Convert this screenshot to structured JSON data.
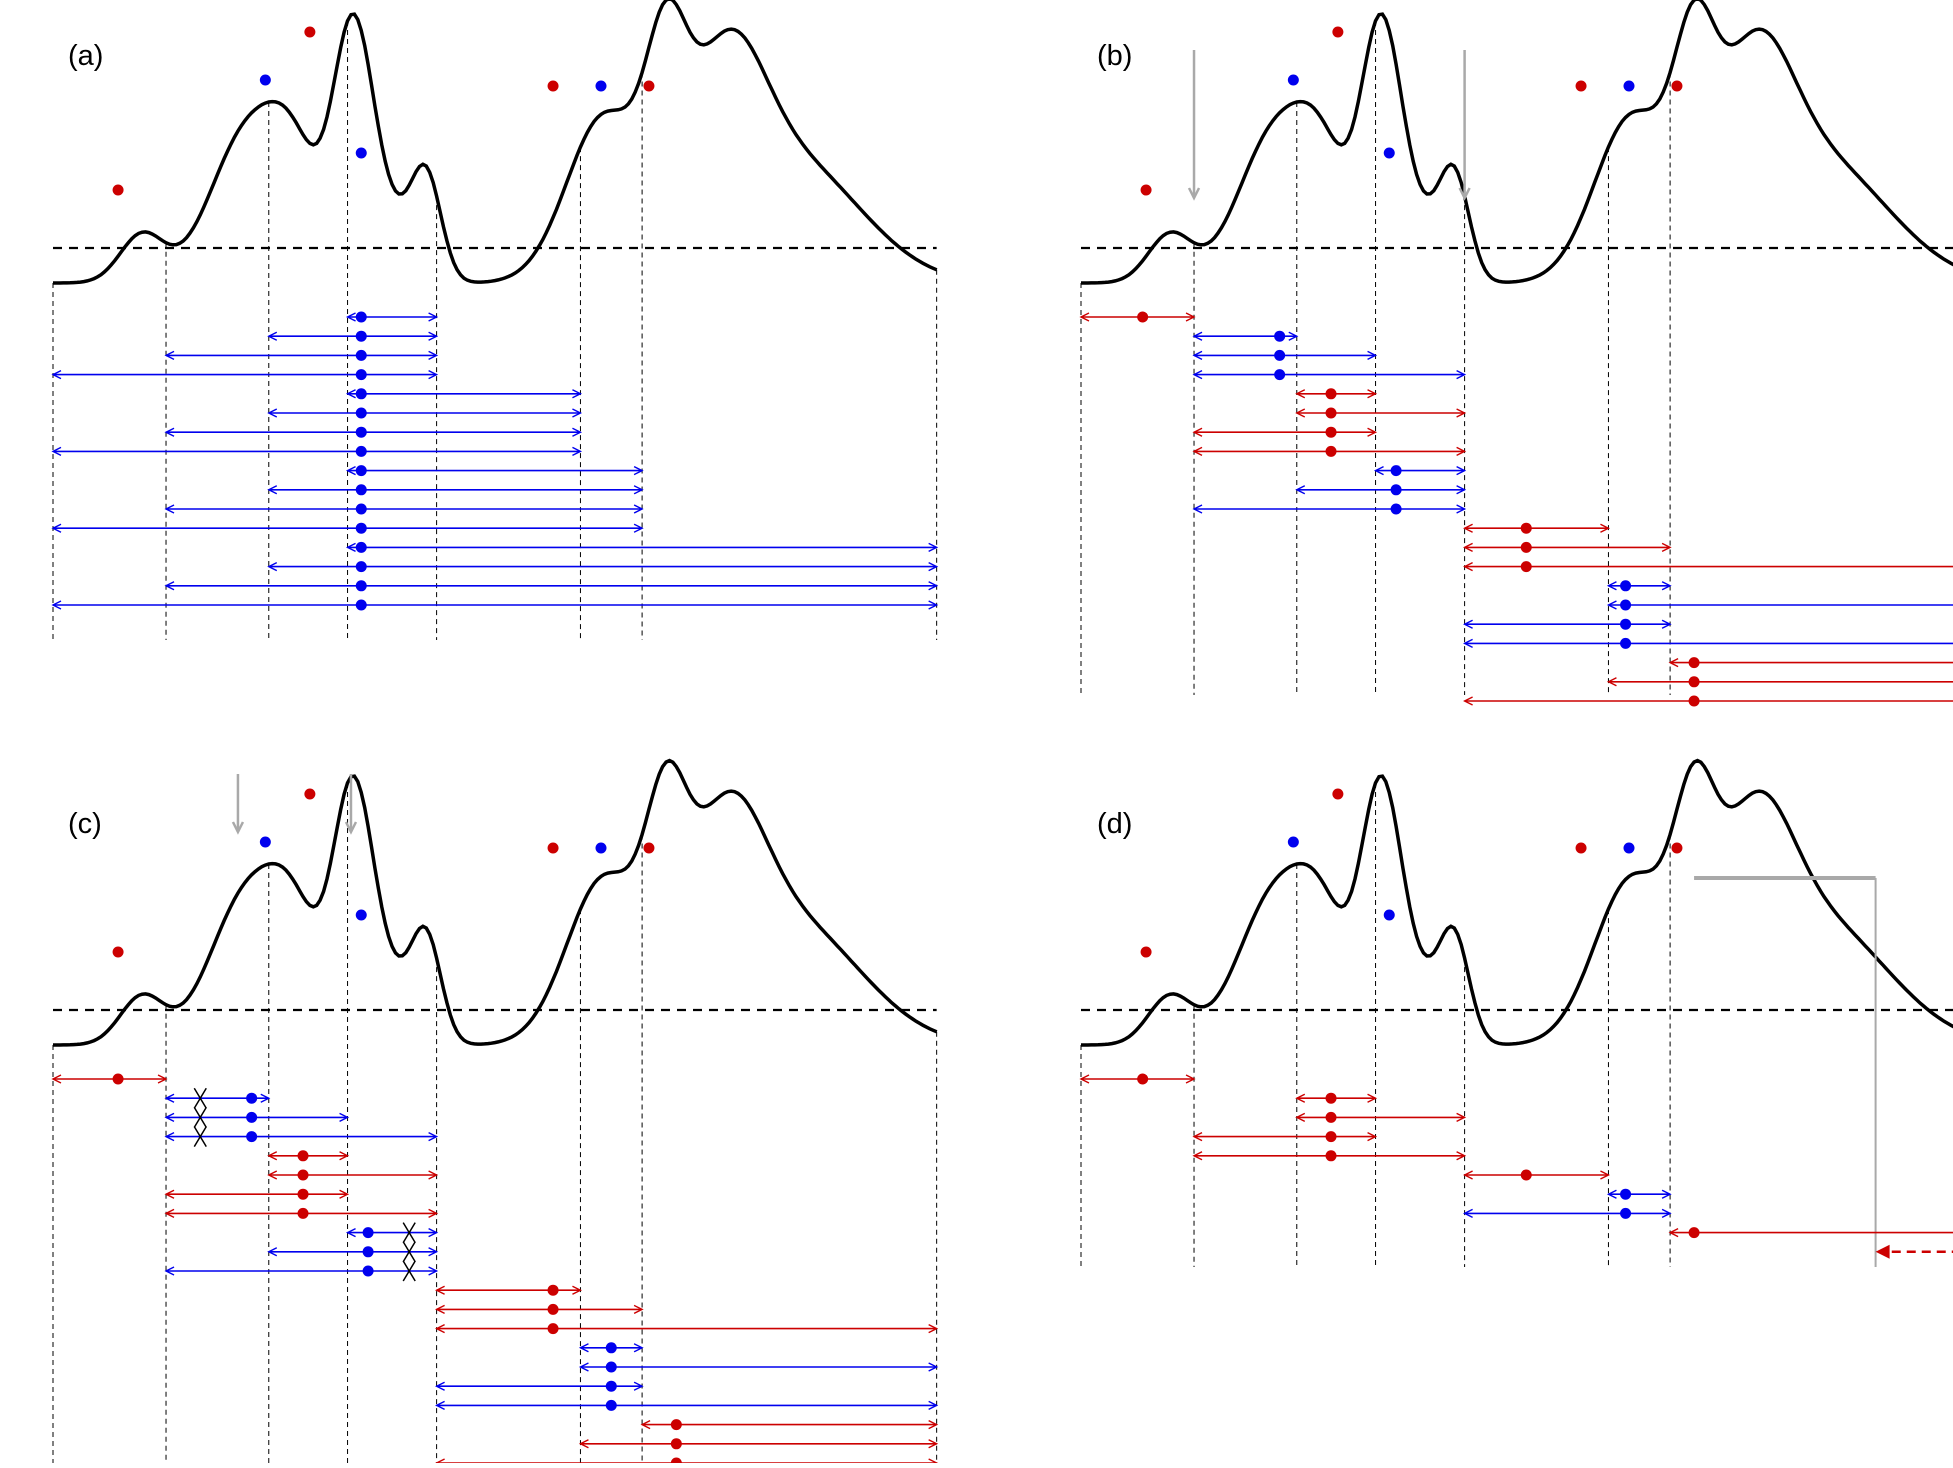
{
  "colors": {
    "red": "#cc0000",
    "blue": "#0000ee",
    "gray": "#a9a9a9",
    "black": "#000000"
  },
  "panels": [
    {
      "id": "a",
      "label": "(a)",
      "peaks": [
        {
          "x": 1.3,
          "color": "red"
        },
        {
          "x": 3.8,
          "color": "blue"
        },
        {
          "x": 4.9,
          "color": "red"
        },
        {
          "x": 5.5,
          "color": "blue"
        },
        {
          "x": 8.7,
          "color": "red"
        },
        {
          "x": 9.6,
          "color": "blue"
        },
        {
          "x": 10.5,
          "color": "red"
        }
      ],
      "separators": [
        0.0,
        1.65,
        3.15,
        4.3,
        5.6,
        7.7,
        8.6,
        12.9
      ],
      "intervals": [
        {
          "from": 4.3,
          "to": 5.6,
          "peak": 4.5,
          "color": "blue"
        },
        {
          "from": 3.15,
          "to": 5.6,
          "peak": 4.5,
          "color": "blue"
        },
        {
          "from": 1.65,
          "to": 5.6,
          "peak": 4.5,
          "color": "blue"
        },
        {
          "from": 0.0,
          "to": 5.6,
          "peak": 4.5,
          "color": "blue"
        },
        {
          "from": 4.3,
          "to": 7.7,
          "peak": 4.5,
          "color": "blue"
        },
        {
          "from": 3.15,
          "to": 7.7,
          "peak": 4.5,
          "color": "blue"
        },
        {
          "from": 1.65,
          "to": 7.7,
          "peak": 4.5,
          "color": "blue"
        },
        {
          "from": 0.0,
          "to": 7.7,
          "peak": 4.5,
          "color": "blue"
        },
        {
          "from": 4.3,
          "to": 8.6,
          "peak": 4.5,
          "color": "blue"
        },
        {
          "from": 3.15,
          "to": 8.6,
          "peak": 4.5,
          "color": "blue"
        },
        {
          "from": 1.65,
          "to": 8.6,
          "peak": 4.5,
          "color": "blue"
        },
        {
          "from": 0.0,
          "to": 8.6,
          "peak": 4.5,
          "color": "blue"
        },
        {
          "from": 4.3,
          "to": 12.9,
          "peak": 4.5,
          "color": "blue"
        },
        {
          "from": 3.15,
          "to": 12.9,
          "peak": 4.5,
          "color": "blue"
        },
        {
          "from": 1.65,
          "to": 12.9,
          "peak": 4.5,
          "color": "blue"
        },
        {
          "from": 0.0,
          "to": 12.9,
          "peak": 4.5,
          "color": "blue"
        }
      ]
    },
    {
      "id": "b",
      "label": "(b)",
      "peaks": [
        {
          "x": 1.3,
          "color": "red"
        },
        {
          "x": 3.8,
          "color": "blue"
        },
        {
          "x": 4.9,
          "color": "red"
        },
        {
          "x": 5.5,
          "color": "blue"
        },
        {
          "x": 8.7,
          "color": "red"
        },
        {
          "x": 9.6,
          "color": "blue"
        },
        {
          "x": 10.5,
          "color": "red"
        }
      ],
      "separators": [
        0.0,
        1.65,
        3.15,
        4.3,
        5.6,
        7.7,
        8.6
      ],
      "gray_arrows": [
        1.65,
        5.6
      ],
      "intervals": [
        {
          "from": 0.0,
          "to": 1.65,
          "peak": 0.9,
          "color": "red"
        },
        {
          "from": 1.65,
          "to": 3.15,
          "peak": 2.9,
          "color": "blue"
        },
        {
          "from": 1.65,
          "to": 4.3,
          "peak": 2.9,
          "color": "blue"
        },
        {
          "from": 1.65,
          "to": 5.6,
          "peak": 2.9,
          "color": "blue"
        },
        {
          "from": 3.15,
          "to": 4.3,
          "peak": 3.65,
          "color": "red"
        },
        {
          "from": 3.15,
          "to": 5.6,
          "peak": 3.65,
          "color": "red"
        },
        {
          "from": 1.65,
          "to": 4.3,
          "peak": 3.65,
          "color": "red"
        },
        {
          "from": 1.65,
          "to": 5.6,
          "peak": 3.65,
          "color": "red"
        },
        {
          "from": 4.3,
          "to": 5.6,
          "peak": 4.6,
          "color": "blue"
        },
        {
          "from": 3.15,
          "to": 5.6,
          "peak": 4.6,
          "color": "blue"
        },
        {
          "from": 1.65,
          "to": 5.6,
          "peak": 4.6,
          "color": "blue"
        },
        {
          "from": 5.6,
          "to": 7.7,
          "peak": 6.5,
          "color": "red"
        },
        {
          "from": 5.6,
          "to": 8.6,
          "peak": 6.5,
          "color": "red"
        },
        {
          "from": 5.6,
          "to": 13.5,
          "peak": 6.5,
          "color": "red"
        },
        {
          "from": 7.7,
          "to": 8.6,
          "peak": 7.95,
          "color": "blue"
        },
        {
          "from": 7.7,
          "to": 13.5,
          "peak": 7.95,
          "color": "blue"
        },
        {
          "from": 5.6,
          "to": 8.6,
          "peak": 7.95,
          "color": "blue"
        },
        {
          "from": 5.6,
          "to": 13.5,
          "peak": 7.95,
          "color": "blue"
        },
        {
          "from": 8.6,
          "to": 13.5,
          "peak": 8.95,
          "color": "red"
        },
        {
          "from": 7.7,
          "to": 13.5,
          "peak": 8.95,
          "color": "red"
        },
        {
          "from": 5.6,
          "to": 13.5,
          "peak": 8.95,
          "color": "red"
        }
      ]
    },
    {
      "id": "c",
      "label": "(c)",
      "peaks": [
        {
          "x": 1.3,
          "color": "red"
        },
        {
          "x": 3.8,
          "color": "blue"
        },
        {
          "x": 4.9,
          "color": "red"
        },
        {
          "x": 5.5,
          "color": "blue"
        },
        {
          "x": 8.7,
          "color": "red"
        },
        {
          "x": 9.6,
          "color": "blue"
        },
        {
          "x": 10.5,
          "color": "red"
        }
      ],
      "separators": [
        0.0,
        1.65,
        3.15,
        4.3,
        5.6,
        7.7,
        8.6,
        12.9
      ],
      "gray_arrows": [
        2.7,
        4.35
      ],
      "intervals": [
        {
          "from": 0.0,
          "to": 1.65,
          "peak": 0.95,
          "color": "red"
        },
        {
          "from": 1.65,
          "to": 3.15,
          "peak": 2.9,
          "color": "blue",
          "crossed": 2.15
        },
        {
          "from": 1.65,
          "to": 4.3,
          "peak": 2.9,
          "color": "blue",
          "crossed": 2.15
        },
        {
          "from": 1.65,
          "to": 5.6,
          "peak": 2.9,
          "color": "blue",
          "crossed": 2.15
        },
        {
          "from": 3.15,
          "to": 4.3,
          "peak": 3.65,
          "color": "red"
        },
        {
          "from": 3.15,
          "to": 5.6,
          "peak": 3.65,
          "color": "red"
        },
        {
          "from": 1.65,
          "to": 4.3,
          "peak": 3.65,
          "color": "red"
        },
        {
          "from": 1.65,
          "to": 5.6,
          "peak": 3.65,
          "color": "red"
        },
        {
          "from": 4.3,
          "to": 5.6,
          "peak": 4.6,
          "color": "blue",
          "crossed": 5.2
        },
        {
          "from": 3.15,
          "to": 5.6,
          "peak": 4.6,
          "color": "blue",
          "crossed": 5.2
        },
        {
          "from": 1.65,
          "to": 5.6,
          "peak": 4.6,
          "color": "blue",
          "crossed": 5.2
        },
        {
          "from": 5.6,
          "to": 7.7,
          "peak": 7.3,
          "color": "red"
        },
        {
          "from": 5.6,
          "to": 8.6,
          "peak": 7.3,
          "color": "red"
        },
        {
          "from": 5.6,
          "to": 12.9,
          "peak": 7.3,
          "color": "red"
        },
        {
          "from": 7.7,
          "to": 8.6,
          "peak": 8.15,
          "color": "blue"
        },
        {
          "from": 7.7,
          "to": 12.9,
          "peak": 8.15,
          "color": "blue"
        },
        {
          "from": 5.6,
          "to": 8.6,
          "peak": 8.15,
          "color": "blue"
        },
        {
          "from": 5.6,
          "to": 12.9,
          "peak": 8.15,
          "color": "blue"
        },
        {
          "from": 8.6,
          "to": 12.9,
          "peak": 9.1,
          "color": "red"
        },
        {
          "from": 7.7,
          "to": 12.9,
          "peak": 9.1,
          "color": "red"
        },
        {
          "from": 5.6,
          "to": 12.9,
          "peak": 9.1,
          "color": "red"
        }
      ]
    },
    {
      "id": "d",
      "label": "(d)",
      "peaks": [
        {
          "x": 1.3,
          "color": "red"
        },
        {
          "x": 3.8,
          "color": "blue"
        },
        {
          "x": 4.9,
          "color": "red"
        },
        {
          "x": 5.5,
          "color": "blue"
        },
        {
          "x": 8.7,
          "color": "red"
        },
        {
          "x": 9.6,
          "color": "blue"
        },
        {
          "x": 10.5,
          "color": "red"
        }
      ],
      "separators": [
        0.0,
        1.65,
        3.15,
        4.3,
        5.6,
        7.7,
        8.6,
        11.6
      ],
      "plateau": {
        "from": 8.95,
        "to": 11.6
      },
      "intervals": [
        {
          "from": 0.0,
          "to": 1.65,
          "peak": 0.9,
          "color": "red"
        },
        {
          "from": 3.15,
          "to": 4.3,
          "peak": 3.65,
          "color": "red"
        },
        {
          "from": 3.15,
          "to": 5.6,
          "peak": 3.65,
          "color": "red"
        },
        {
          "from": 1.65,
          "to": 4.3,
          "peak": 3.65,
          "color": "red"
        },
        {
          "from": 1.65,
          "to": 5.6,
          "peak": 3.65,
          "color": "red"
        },
        {
          "from": 5.6,
          "to": 7.7,
          "peak": 6.5,
          "color": "red"
        },
        {
          "from": 7.7,
          "to": 8.6,
          "peak": 7.95,
          "color": "blue"
        },
        {
          "from": 5.6,
          "to": 8.6,
          "peak": 7.95,
          "color": "blue"
        },
        {
          "from": 8.6,
          "to": 13.5,
          "peak": 8.95,
          "color": "red"
        }
      ],
      "dashed_arrow": {
        "from": 13.5,
        "to": 11.6,
        "color": "red"
      }
    }
  ]
}
